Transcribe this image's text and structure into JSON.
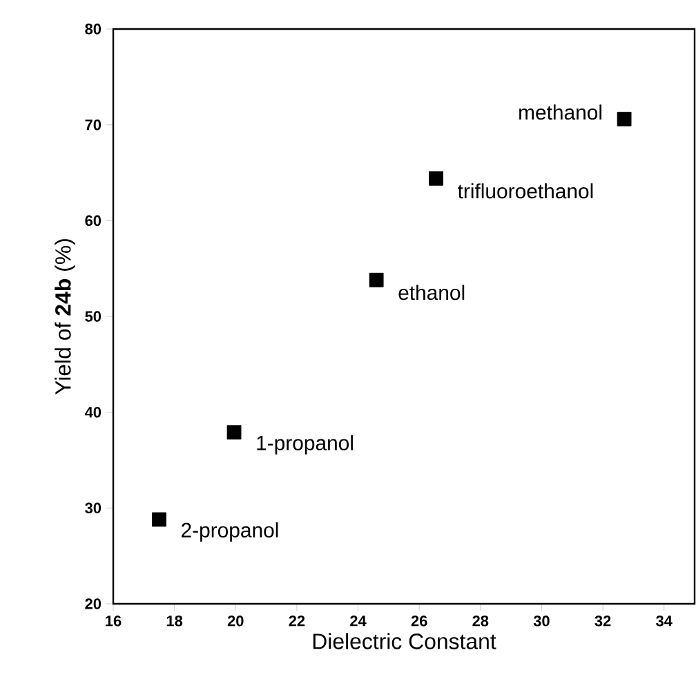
{
  "chart_data": {
    "type": "scatter",
    "xlabel": "Dielectric Constant",
    "ylabel": "Yield of **24b** (%)",
    "x": [
      32.7,
      26.55,
      24.6,
      19.95,
      17.5
    ],
    "series": [
      {
        "color": "#000000",
        "values": [
          70.6,
          64.4,
          53.8,
          37.9,
          28.8
        ]
      }
    ],
    "marker": "square",
    "grid": false,
    "xlim": [
      16,
      35
    ],
    "xticks": [
      16,
      18,
      20,
      22,
      24,
      26,
      28,
      30,
      32,
      34
    ],
    "ylim": [
      20,
      80
    ],
    "yticks": [
      20,
      30,
      40,
      50,
      60,
      70,
      80
    ],
    "annotations": [
      {
        "text": "methanol",
        "x": 32.7,
        "y": 70.6
      },
      {
        "text": "trifluoroethanol",
        "x": 26.55,
        "y": 64.4
      },
      {
        "text": "ethanol",
        "x": 24.6,
        "y": 53.8
      },
      {
        "text": "1-propanol",
        "x": 19.95,
        "y": 37.9
      },
      {
        "text": "2-propanol",
        "x": 17.5,
        "y": 28.8
      }
    ]
  }
}
